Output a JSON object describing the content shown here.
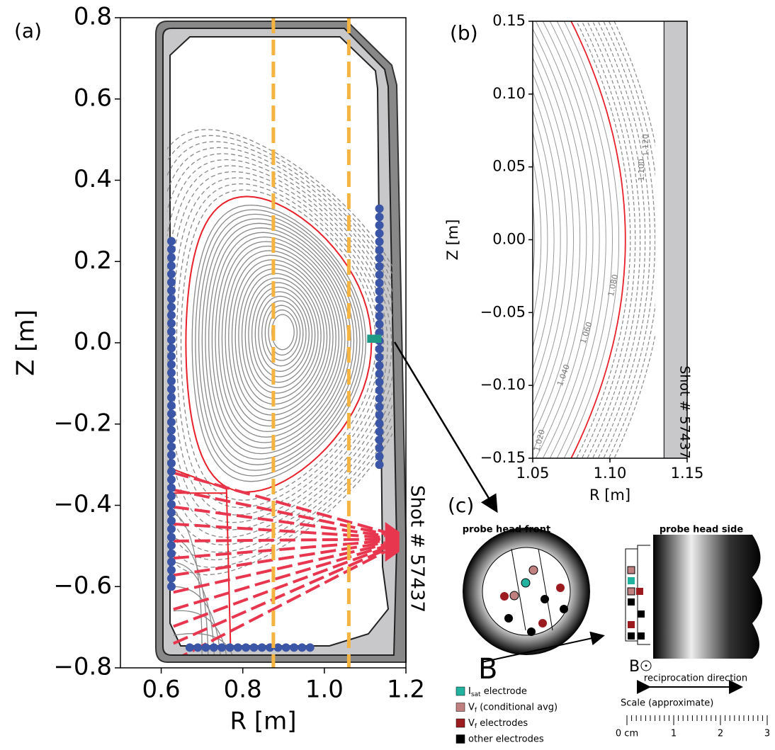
{
  "chart_data": [
    {
      "type": "equilibrium",
      "panel_label": "(a)",
      "xlabel": "R [m]",
      "ylabel": "Z [m]",
      "xlim": [
        0.5,
        1.2
      ],
      "ylim": [
        -0.8,
        0.8
      ],
      "xticks": [
        0.6,
        0.8,
        {
          "value": 1.0,
          "label": "1.0"
        },
        1.2
      ],
      "yticks": [
        {
          "value": -0.8,
          "label": "−0.8"
        },
        {
          "value": -0.6,
          "label": "−0.6"
        },
        {
          "value": -0.4,
          "label": "−0.4"
        },
        {
          "value": -0.2,
          "label": "−0.2"
        },
        {
          "value": 0.0,
          "label": "0.0"
        },
        0.2,
        0.4,
        0.6,
        0.8
      ],
      "vlines": {
        "x": [
          0.875,
          1.06
        ],
        "color": "#f5b342"
      },
      "probe_color": "#3b56a6",
      "probe_arrays": [
        {
          "x": [
            0.625,
            0.625
          ],
          "y": [
            0.25,
            -0.6
          ]
        },
        {
          "x": [
            1.135,
            1.135
          ],
          "y": [
            0.33,
            -0.3
          ]
        },
        {
          "x": [
            0.67,
            0.965
          ],
          "y": [
            -0.75,
            -0.75
          ]
        }
      ],
      "separatrix_color": "#e8202a",
      "annotation": "Shot # 57437"
    },
    {
      "type": "flux_zoom",
      "panel_label": "(b)",
      "xlabel": "R [m]",
      "ylabel": "Z [m]",
      "xlim": [
        1.05,
        1.15
      ],
      "ylim": [
        -0.15,
        0.15
      ],
      "xticks": [
        1.05,
        {
          "value": 1.1,
          "label": "1.10"
        },
        1.15
      ],
      "yticks": [
        {
          "value": -0.15,
          "label": "−0.15"
        },
        {
          "value": -0.1,
          "label": "−0.10"
        },
        {
          "value": -0.05,
          "label": "−0.05"
        },
        {
          "value": 0.0,
          "label": "0.00"
        },
        0.05,
        {
          "value": 0.1,
          "label": "0.10"
        },
        0.15
      ],
      "wall_x": 1.135,
      "contour_labels": [
        "1.020",
        "1.040",
        "1.060",
        "1.080",
        "1.100",
        "1.120"
      ],
      "separatrix_color": "#e8202a",
      "annotation": "Shot # 57437"
    }
  ],
  "diagram": {
    "panel_label": "(c)",
    "front_title": "probe head front",
    "side_title": "probe head side",
    "field_label": "B",
    "direction_label": "reciprocation direction",
    "scale_title": "Scale (approximate)",
    "scale_labels": [
      "0 cm",
      "1",
      "2",
      "3"
    ],
    "legend": [
      {
        "main": "I",
        "sub": "sat",
        "rest": " electrode"
      },
      {
        "main": "V",
        "sub": "f",
        "rest": " (conditional avg)"
      },
      {
        "main": "V",
        "sub": "f",
        "rest": " electrodes"
      },
      {
        "main": "other electrodes",
        "sub": "",
        "rest": ""
      }
    ]
  }
}
